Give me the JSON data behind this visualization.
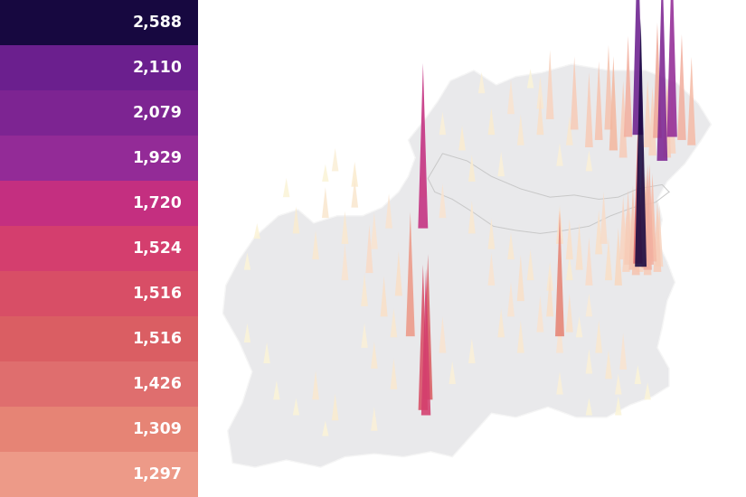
{
  "legend_values": [
    "2,588",
    "2,110",
    "2,079",
    "1,929",
    "1,720",
    "1,524",
    "1,516",
    "1,516",
    "1,426",
    "1,309",
    "1,297"
  ],
  "legend_colors": [
    "#170840",
    "#6b1f8e",
    "#7d2492",
    "#932b97",
    "#c42f80",
    "#d43e6e",
    "#d84e66",
    "#da5e63",
    "#df6e6e",
    "#e68475",
    "#ed9a88"
  ],
  "background_color": "#ffffff",
  "map_bg": "#e8e8ea",
  "ni_border_color": "#cccccc",
  "spike_max_val": 2588,
  "areas": [
    [
      -6.27,
      53.33,
      2588,
      "#170840"
    ],
    [
      -6.3,
      54.6,
      2110,
      "#6b1f8e"
    ],
    [
      -6.05,
      54.35,
      2079,
      "#7d2492"
    ],
    [
      -5.95,
      54.58,
      1929,
      "#932b97"
    ],
    [
      -8.5,
      53.7,
      1720,
      "#c42f80"
    ],
    [
      -8.47,
      51.9,
      1524,
      "#d43e6e"
    ],
    [
      -8.5,
      51.95,
      1516,
      "#d84e66"
    ],
    [
      -8.45,
      52.05,
      1516,
      "#da5e63"
    ],
    [
      -6.3,
      53.36,
      1426,
      "#df6e6e"
    ],
    [
      -7.1,
      52.66,
      1309,
      "#e68475"
    ],
    [
      -8.63,
      52.66,
      1297,
      "#ed9a88"
    ],
    [
      -6.1,
      54.57,
      1200,
      "#f0a898"
    ],
    [
      -5.85,
      54.55,
      1100,
      "#f2b0a0"
    ],
    [
      -6.4,
      54.58,
      1050,
      "#f3b0a0"
    ],
    [
      -6.55,
      54.45,
      980,
      "#f4b8a0"
    ],
    [
      -5.75,
      54.5,
      920,
      "#f5bca8"
    ],
    [
      -6.6,
      54.65,
      880,
      "#f5c4b0"
    ],
    [
      -6.7,
      54.55,
      820,
      "#f6c4b0"
    ],
    [
      -6.45,
      54.38,
      800,
      "#f7ccb8"
    ],
    [
      -6.8,
      54.48,
      780,
      "#f7ccb8"
    ],
    [
      -6.0,
      54.38,
      760,
      "#f7ccb8"
    ],
    [
      -6.15,
      54.4,
      720,
      "#f8d4c0"
    ],
    [
      -6.2,
      54.48,
      700,
      "#f8d4c0"
    ],
    [
      -6.0,
      54.52,
      680,
      "#f8d4c0"
    ],
    [
      -5.95,
      54.42,
      660,
      "#f8d4c0"
    ],
    [
      -6.95,
      54.65,
      760,
      "#f7ccb8"
    ],
    [
      -7.2,
      54.75,
      720,
      "#f8d4c0"
    ],
    [
      -6.25,
      53.38,
      1200,
      "#f0a898"
    ],
    [
      -6.2,
      53.3,
      1100,
      "#f2b0a0"
    ],
    [
      -6.18,
      53.35,
      1050,
      "#f3b0a0"
    ],
    [
      -6.22,
      53.32,
      980,
      "#f4b8a0"
    ],
    [
      -6.15,
      53.38,
      920,
      "#f5bca8"
    ],
    [
      -6.35,
      53.3,
      880,
      "#f5c4b0"
    ],
    [
      -6.32,
      53.25,
      820,
      "#f6c4b0"
    ],
    [
      -6.4,
      53.35,
      780,
      "#f7ccb8"
    ],
    [
      -6.1,
      53.28,
      740,
      "#f7ccb8"
    ],
    [
      -6.2,
      53.25,
      700,
      "#f7ccb8"
    ],
    [
      -6.45,
      53.4,
      660,
      "#f8d4c0"
    ],
    [
      -6.08,
      53.33,
      640,
      "#f8d4c0"
    ],
    [
      -6.42,
      53.28,
      620,
      "#f8d4c0"
    ],
    [
      -6.28,
      53.28,
      600,
      "#f8d4c0"
    ],
    [
      -6.38,
      53.38,
      580,
      "#f8d8c0"
    ],
    [
      -6.15,
      53.42,
      560,
      "#f8d8c0"
    ],
    [
      -6.5,
      53.15,
      600,
      "#f8d8c0"
    ],
    [
      -6.65,
      53.55,
      540,
      "#f8dcc8"
    ],
    [
      -6.8,
      53.15,
      500,
      "#f9dcc8"
    ],
    [
      -6.9,
      53.3,
      480,
      "#f9e0c8"
    ],
    [
      -6.7,
      53.45,
      460,
      "#f9e0c8"
    ],
    [
      -6.6,
      53.2,
      440,
      "#f9e0c8"
    ],
    [
      -7.0,
      53.4,
      420,
      "#fae0c8"
    ],
    [
      -7.1,
      53.55,
      400,
      "#fae0c8"
    ],
    [
      -7.5,
      53.0,
      480,
      "#f9e0c8"
    ],
    [
      -7.2,
      52.85,
      440,
      "#f9e0c8"
    ],
    [
      -7.0,
      52.7,
      400,
      "#fae0c8"
    ],
    [
      -7.3,
      52.7,
      380,
      "#fae4d0"
    ],
    [
      -7.6,
      52.85,
      360,
      "#fae4d0"
    ],
    [
      -7.8,
      53.15,
      340,
      "#fae4d0"
    ],
    [
      -7.4,
      53.2,
      320,
      "#fae8d0"
    ],
    [
      -7.2,
      53.1,
      300,
      "#fae8d0"
    ],
    [
      -7.6,
      53.4,
      280,
      "#fae8d0"
    ],
    [
      -7.0,
      53.2,
      260,
      "#faecd0"
    ],
    [
      -6.8,
      52.85,
      240,
      "#faecd8"
    ],
    [
      -6.9,
      52.65,
      220,
      "#fbf0d8"
    ],
    [
      -7.1,
      52.5,
      380,
      "#fae4d0"
    ],
    [
      -7.5,
      52.5,
      340,
      "#fae8d0"
    ],
    [
      -7.7,
      52.65,
      300,
      "#fae8d0"
    ],
    [
      -8.0,
      52.4,
      260,
      "#fbf0d8"
    ],
    [
      -8.2,
      52.2,
      240,
      "#fbf0d8"
    ],
    [
      -8.3,
      52.5,
      380,
      "#fae4d0"
    ],
    [
      -8.8,
      52.15,
      320,
      "#fae8d0"
    ],
    [
      -9.0,
      52.35,
      280,
      "#fae8d0"
    ],
    [
      -9.1,
      52.55,
      260,
      "#fbf0d8"
    ],
    [
      -9.05,
      53.27,
      500,
      "#f9dcc8"
    ],
    [
      -8.75,
      53.05,
      460,
      "#f9e0c8"
    ],
    [
      -8.9,
      52.85,
      420,
      "#fae0c8"
    ],
    [
      -9.3,
      53.2,
      380,
      "#fae4d0"
    ],
    [
      -9.1,
      52.95,
      340,
      "#fae8d0"
    ],
    [
      -8.8,
      52.65,
      300,
      "#fae8d0"
    ],
    [
      -9.0,
      53.5,
      380,
      "#fae4d0"
    ],
    [
      -8.85,
      53.7,
      360,
      "#fae4d0"
    ],
    [
      -9.3,
      53.55,
      340,
      "#fae8d0"
    ],
    [
      -9.5,
      53.8,
      320,
      "#fae8d0"
    ],
    [
      -9.6,
      53.4,
      300,
      "#fae8d0"
    ],
    [
      -9.8,
      53.65,
      280,
      "#faecd0"
    ],
    [
      -9.2,
      54.1,
      260,
      "#fbecd0"
    ],
    [
      -9.4,
      54.25,
      240,
      "#fbf0d8"
    ],
    [
      -8.5,
      54.0,
      400,
      "#fae0c8"
    ],
    [
      -8.3,
      53.8,
      360,
      "#fae4d0"
    ],
    [
      -8.0,
      53.65,
      340,
      "#fae8d0"
    ],
    [
      -7.8,
      53.5,
      320,
      "#fae8d0"
    ],
    [
      -7.3,
      54.6,
      400,
      "#fae0c8"
    ],
    [
      -7.6,
      54.8,
      360,
      "#fae4d0"
    ],
    [
      -7.3,
      54.85,
      340,
      "#fae8d0"
    ],
    [
      -7.5,
      54.5,
      320,
      "#fae8d0"
    ],
    [
      -7.0,
      54.5,
      300,
      "#fae8d0"
    ],
    [
      -7.8,
      54.6,
      280,
      "#faecd0"
    ],
    [
      -8.1,
      54.45,
      260,
      "#fbecd0"
    ],
    [
      -8.3,
      54.6,
      240,
      "#fbf0d8"
    ],
    [
      -7.9,
      55.0,
      220,
      "#fbf0d8"
    ],
    [
      -7.4,
      55.05,
      200,
      "#fbf4d8"
    ],
    [
      -8.0,
      54.15,
      280,
      "#faecd0"
    ],
    [
      -7.7,
      54.2,
      260,
      "#fbf0d8"
    ],
    [
      -7.1,
      54.3,
      240,
      "#fbf0d8"
    ],
    [
      -6.8,
      54.25,
      220,
      "#fbf0d8"
    ],
    [
      -6.45,
      52.34,
      380,
      "#fae4d0"
    ],
    [
      -6.7,
      52.5,
      340,
      "#fae8d0"
    ],
    [
      -6.6,
      52.25,
      300,
      "#fae8d0"
    ],
    [
      -6.8,
      52.3,
      260,
      "#fbf0d8"
    ],
    [
      -7.1,
      52.1,
      240,
      "#fbf0d8"
    ],
    [
      -6.5,
      52.1,
      220,
      "#fbf0d8"
    ],
    [
      -6.3,
      52.2,
      200,
      "#fbf4d8"
    ],
    [
      -6.2,
      52.05,
      180,
      "#fbf4d8"
    ],
    [
      -6.5,
      51.9,
      200,
      "#fbf4d8"
    ],
    [
      -6.8,
      51.9,
      180,
      "#fbf4d8"
    ],
    [
      -9.5,
      51.7,
      160,
      "#fcf4d8"
    ],
    [
      -9.8,
      51.9,
      180,
      "#fbf4d8"
    ],
    [
      -10.0,
      52.05,
      200,
      "#fbf4d8"
    ],
    [
      -9.0,
      51.75,
      250,
      "#fbf0d8"
    ],
    [
      -9.4,
      51.85,
      280,
      "#faecd0"
    ],
    [
      -9.6,
      52.05,
      300,
      "#fae8d0"
    ],
    [
      -10.1,
      52.4,
      220,
      "#fbf4d8"
    ],
    [
      -10.3,
      52.6,
      200,
      "#fbf4d8"
    ],
    [
      -10.3,
      53.3,
      180,
      "#fcf4d8"
    ],
    [
      -10.2,
      53.6,
      160,
      "#fcf4d8"
    ],
    [
      -9.9,
      54.0,
      200,
      "#fbf4d8"
    ],
    [
      -9.5,
      54.15,
      180,
      "#fbf4d8"
    ],
    [
      -9.2,
      53.9,
      300,
      "#fae8d0"
    ]
  ]
}
